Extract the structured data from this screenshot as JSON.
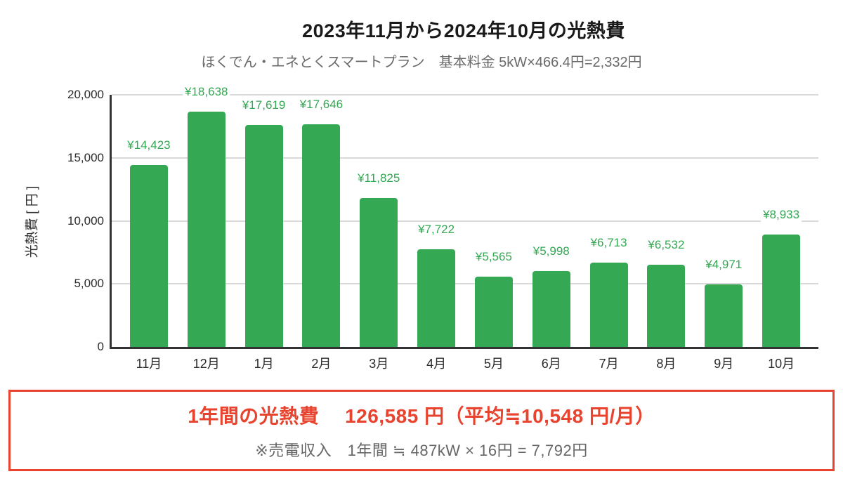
{
  "header": {
    "title": "2023年11月から2024年10月の光熱費",
    "subtitle": "ほくでん・エネとくスマートプラン　基本料金 5kW×466.4円=2,332円"
  },
  "chart_data": {
    "type": "bar",
    "title": "2023年11月から2024年10月の光熱費",
    "subtitle": "ほくでん・エネとくスマートプラン　基本料金 5kW×466.4円=2,332円",
    "xlabel": "",
    "ylabel": "光熱費 [ 円 ]",
    "ylim": [
      0,
      20000
    ],
    "yticks": [
      0,
      5000,
      10000,
      15000,
      20000
    ],
    "ytick_labels": [
      "0",
      "5,000",
      "10,000",
      "15,000",
      "20,000"
    ],
    "categories": [
      "11月",
      "12月",
      "1月",
      "2月",
      "3月",
      "4月",
      "5月",
      "6月",
      "7月",
      "8月",
      "9月",
      "10月"
    ],
    "values": [
      14423,
      18638,
      17619,
      17646,
      11825,
      7722,
      5565,
      5998,
      6713,
      6532,
      4971,
      8933
    ],
    "value_labels": [
      "¥14,423",
      "¥18,638",
      "¥17,619",
      "¥17,646",
      "¥11,825",
      "¥7,722",
      "¥5,565",
      "¥5,998",
      "¥6,713",
      "¥6,532",
      "¥4,971",
      "¥8,933"
    ],
    "grid": true,
    "legend": "none",
    "bar_color": "#34a853",
    "value_label_color": "#34a853",
    "gridline_color": "#d9d9d9",
    "axis_color": "#333333"
  },
  "summary": {
    "total_line": "1年間の光熱費　 126,585 円（平均≒10,548 円/月）",
    "note_line": "※売電収入　1年間 ≒ 487kW × 16円 = 7,792円",
    "border_color": "#e8432e",
    "total_color": "#e8432e",
    "note_color": "#666666"
  }
}
